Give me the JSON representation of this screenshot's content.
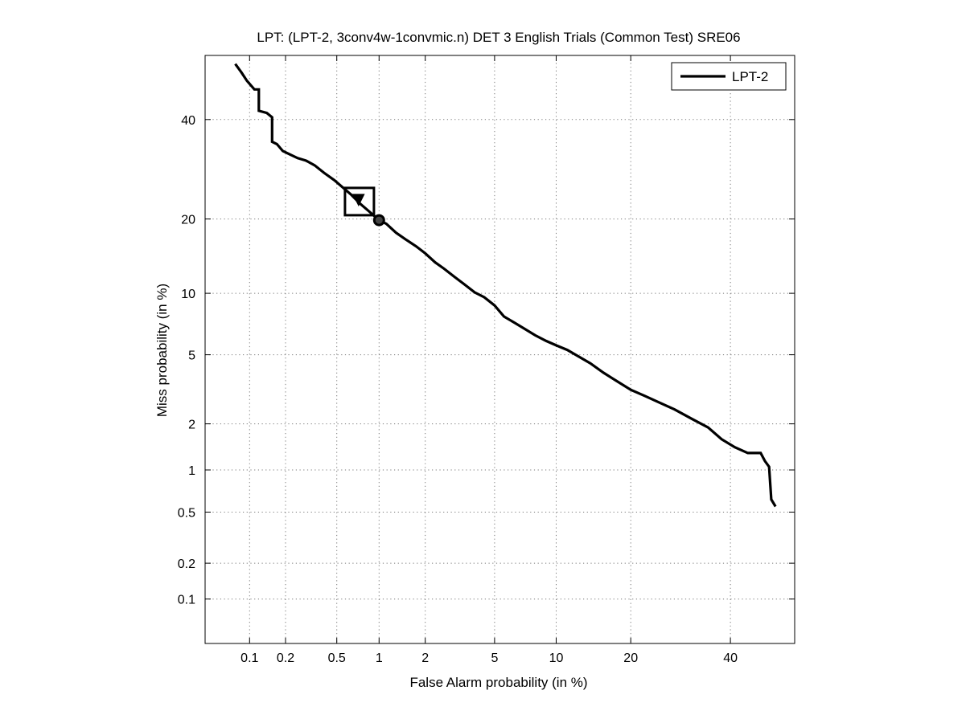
{
  "chart_data": {
    "type": "line",
    "title": "LPT: (LPT-2, 3conv4w-1convmic.n) DET 3 English Trials (Common Test) SRE06",
    "xlabel": "False Alarm probability (in %)",
    "ylabel": "Miss probability (in %)",
    "scale": "normal-deviate (probit)",
    "xlim": [
      0.04,
      55
    ],
    "ylim": [
      0.04,
      55
    ],
    "grid": true,
    "legend_position": "top-right",
    "x_ticks": [
      0.1,
      0.2,
      0.5,
      1,
      2,
      5,
      10,
      20,
      40
    ],
    "x_tick_labels": [
      "0.1",
      "0.2",
      "0.5",
      "1",
      "2",
      "5",
      "10",
      "20",
      "40"
    ],
    "y_ticks": [
      0.1,
      0.2,
      0.5,
      1,
      2,
      5,
      10,
      20,
      40
    ],
    "y_tick_labels": [
      "0.1",
      "0.2",
      "0.5",
      "1",
      "2",
      "5",
      "10",
      "20",
      "40"
    ],
    "series": [
      {
        "name": "LPT-2",
        "color": "#000000",
        "points": [
          [
            0.075,
            53
          ],
          [
            0.085,
            51
          ],
          [
            0.095,
            49
          ],
          [
            0.11,
            47
          ],
          [
            0.12,
            47
          ],
          [
            0.12,
            42
          ],
          [
            0.14,
            41.5
          ],
          [
            0.155,
            40.5
          ],
          [
            0.155,
            35
          ],
          [
            0.17,
            34.5
          ],
          [
            0.19,
            33
          ],
          [
            0.22,
            32.2
          ],
          [
            0.25,
            31.5
          ],
          [
            0.29,
            31
          ],
          [
            0.34,
            30
          ],
          [
            0.4,
            28.5
          ],
          [
            0.48,
            27
          ],
          [
            0.56,
            25.5
          ],
          [
            0.64,
            24.2
          ],
          [
            0.74,
            22.6
          ],
          [
            0.86,
            21.2
          ],
          [
            1.0,
            19.8
          ],
          [
            1.12,
            19.2
          ],
          [
            1.3,
            17.8
          ],
          [
            1.5,
            16.8
          ],
          [
            1.75,
            15.8
          ],
          [
            2.0,
            14.8
          ],
          [
            2.3,
            13.6
          ],
          [
            2.6,
            12.8
          ],
          [
            3.0,
            11.8
          ],
          [
            3.4,
            11.0
          ],
          [
            3.9,
            10.1
          ],
          [
            4.4,
            9.6
          ],
          [
            5.0,
            8.8
          ],
          [
            5.6,
            7.8
          ],
          [
            6.3,
            7.3
          ],
          [
            7.1,
            6.8
          ],
          [
            8.0,
            6.3
          ],
          [
            9.0,
            5.9
          ],
          [
            10.0,
            5.6
          ],
          [
            11.2,
            5.3
          ],
          [
            12.5,
            4.9
          ],
          [
            14.0,
            4.5
          ],
          [
            15.8,
            4.0
          ],
          [
            17.7,
            3.6
          ],
          [
            20.0,
            3.2
          ],
          [
            22.4,
            2.95
          ],
          [
            25.0,
            2.7
          ],
          [
            28.0,
            2.45
          ],
          [
            31.5,
            2.15
          ],
          [
            35.0,
            1.9
          ],
          [
            38.0,
            1.6
          ],
          [
            41.0,
            1.42
          ],
          [
            44.0,
            1.3
          ],
          [
            47.0,
            1.3
          ],
          [
            48.0,
            1.15
          ],
          [
            49.0,
            1.05
          ],
          [
            49.5,
            0.62
          ],
          [
            50.5,
            0.55
          ]
        ]
      }
    ],
    "markers": [
      {
        "shape": "square",
        "x": 0.73,
        "y": 23.0
      },
      {
        "shape": "triangle-down",
        "x": 0.72,
        "y": 23.3
      },
      {
        "shape": "circle",
        "x": 1.0,
        "y": 19.8
      }
    ]
  }
}
